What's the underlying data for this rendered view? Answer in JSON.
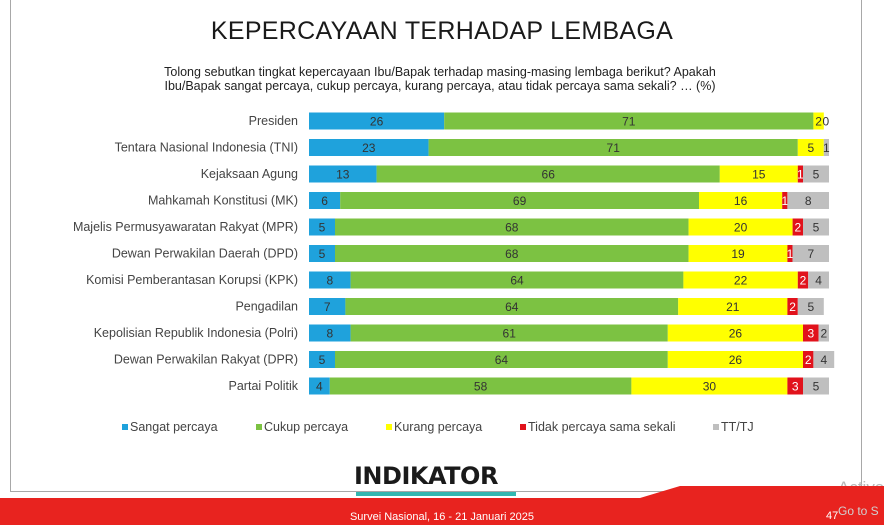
{
  "title": "KEPERCAYAAN TERHADAP LEMBAGA",
  "subtitle_line1": "Tolong sebutkan tingkat kepercayaan Ibu/Bapak terhadap masing-masing lembaga berikut? Apakah",
  "subtitle_line2": "Ibu/Bapak sangat percaya, cukup percaya, kurang percaya, atau tidak percaya sama sekali? … (%)",
  "logo": "INDIKATOR",
  "footer": "Survei Nasional, 16 - 21 Januari 2025",
  "page_number": "47",
  "watermark_line1": "Activa",
  "watermark_line2": "Go to S",
  "colors": {
    "sangat": "#1fa2dc",
    "cukup": "#7cc242",
    "kurang": "#ffff00",
    "tidak": "#e1121b",
    "tttj": "#bfbfbf",
    "footer": "#e8231f",
    "logo_accent": "#33b7b1"
  },
  "chart_data": {
    "type": "bar",
    "orientation": "horizontal",
    "stacked": true,
    "categories": [
      "Presiden",
      "Tentara Nasional Indonesia (TNI)",
      "Kejaksaan Agung",
      "Mahkamah Konstitusi (MK)",
      "Majelis Permusyawaratan Rakyat (MPR)",
      "Dewan Perwakilan Daerah (DPD)",
      "Komisi Pemberantasan Korupsi (KPK)",
      "Pengadilan",
      "Kepolisian Republik Indonesia (Polri)",
      "Dewan Perwakilan Rakyat (DPR)",
      "Partai Politik"
    ],
    "series": [
      {
        "name": "Sangat percaya",
        "color": "#1fa2dc",
        "values": [
          26,
          23,
          13,
          6,
          5,
          5,
          8,
          7,
          8,
          5,
          4
        ]
      },
      {
        "name": "Cukup percaya",
        "color": "#7cc242",
        "values": [
          71,
          71,
          66,
          69,
          68,
          68,
          64,
          64,
          61,
          64,
          58
        ]
      },
      {
        "name": "Kurang percaya",
        "color": "#ffff00",
        "values": [
          2,
          5,
          15,
          16,
          20,
          19,
          22,
          21,
          26,
          26,
          30
        ]
      },
      {
        "name": "Tidak percaya sama sekali",
        "color": "#e1121b",
        "values": [
          0,
          0,
          1,
          1,
          2,
          1,
          2,
          2,
          3,
          2,
          3
        ]
      },
      {
        "name": "TT/TJ",
        "color": "#bfbfbf",
        "values": [
          0,
          1,
          5,
          8,
          5,
          7,
          4,
          5,
          2,
          4,
          5
        ]
      }
    ],
    "labels": [
      [
        "26",
        "71",
        "2",
        "",
        "0"
      ],
      [
        "23",
        "71",
        "5",
        "",
        "1"
      ],
      [
        "13",
        "66",
        "15",
        "1",
        "5"
      ],
      [
        "6",
        "69",
        "16",
        "1",
        "8"
      ],
      [
        "5",
        "68",
        "20",
        "2",
        "5"
      ],
      [
        "5",
        "68",
        "19",
        "1",
        "7"
      ],
      [
        "8",
        "64",
        "22",
        "2",
        "4"
      ],
      [
        "7",
        "64",
        "21",
        "2",
        "5"
      ],
      [
        "8",
        "61",
        "26",
        "3",
        "2"
      ],
      [
        "5",
        "64",
        "26",
        "2",
        "4"
      ],
      [
        "4",
        "58",
        "30",
        "3",
        "5"
      ]
    ],
    "xlim": [
      0,
      100
    ],
    "legend_position": "bottom"
  }
}
